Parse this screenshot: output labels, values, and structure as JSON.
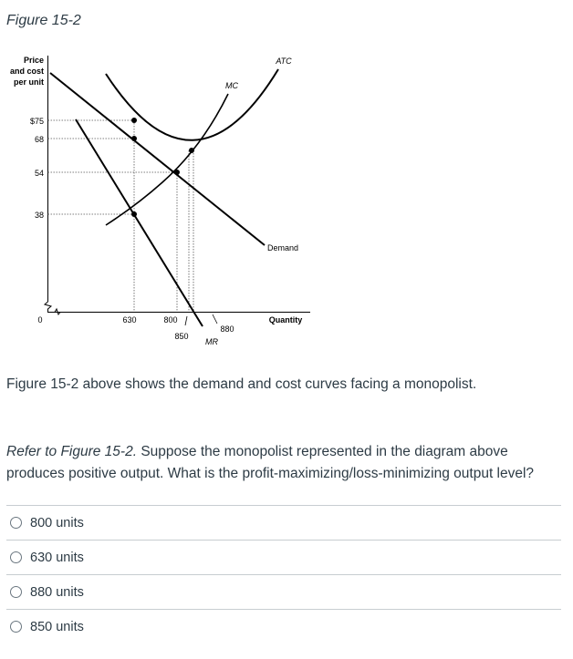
{
  "figure": {
    "title": "Figure 15-2",
    "description": "Figure 15-2 above shows the demand and cost curves facing a monopolist."
  },
  "chart_data": {
    "type": "line",
    "ylabel": "Price and cost per unit",
    "ylabel_lines": [
      "Price",
      "and cost",
      "per unit"
    ],
    "xlabel": "Quantity",
    "origin_label": "0",
    "y_ticks": [
      {
        "value": 75,
        "label": "$75"
      },
      {
        "value": 68,
        "label": "68"
      },
      {
        "value": 54,
        "label": "54"
      },
      {
        "value": 38,
        "label": "38"
      }
    ],
    "x_ticks": [
      {
        "value": 630,
        "label": "630"
      },
      {
        "value": 800,
        "label": "800"
      },
      {
        "value": 850,
        "label": "850"
      },
      {
        "value": 880,
        "label": "880"
      }
    ],
    "curves": [
      {
        "name": "ATC",
        "label": "ATC"
      },
      {
        "name": "MC",
        "label": "MC"
      },
      {
        "name": "Demand",
        "label": "Demand"
      },
      {
        "name": "MR",
        "label": "MR"
      }
    ],
    "key_points": [
      {
        "x": 630,
        "y": 75
      },
      {
        "x": 630,
        "y": 68
      },
      {
        "x": 630,
        "y": 38
      },
      {
        "x": 800,
        "y": 54
      },
      {
        "x": 850,
        "y": 68
      }
    ]
  },
  "question": {
    "ref_text": "Refer to Figure 15-2.",
    "body_text": " Suppose the monopolist represented in the diagram above produces positive output. What is the profit-maximizing/loss-minimizing output level?"
  },
  "answers": [
    {
      "label": "800 units"
    },
    {
      "label": "630 units"
    },
    {
      "label": "880 units"
    },
    {
      "label": "850 units"
    }
  ]
}
